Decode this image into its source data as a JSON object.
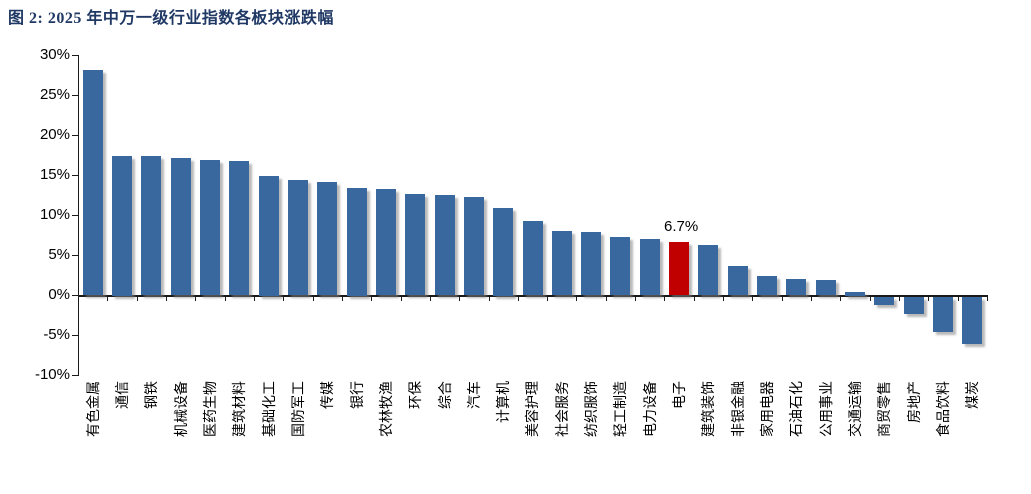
{
  "figure": {
    "title": "图 2: 2025 年中万一级行业指数各板块涨跌幅"
  },
  "colors": {
    "title": "#1F3864",
    "bar": "#38689E",
    "highlight": "#C00000",
    "axis": "#1a1a1a",
    "text": "#000000"
  },
  "chart_data": {
    "type": "bar",
    "title": "2025 年中万一级行业指数各板块涨跌幅",
    "categories": [
      "有色金属",
      "通信",
      "钢铁",
      "机械设备",
      "医药生物",
      "建筑材料",
      "基础化工",
      "国防军工",
      "传媒",
      "银行",
      "农林牧渔",
      "环保",
      "综合",
      "汽车",
      "计算机",
      "美容护理",
      "社会服务",
      "纺织服饰",
      "轻工制造",
      "电力设备",
      "电子",
      "建筑装饰",
      "非银金融",
      "家用电器",
      "石油石化",
      "公用事业",
      "交通运输",
      "商贸零售",
      "房地产",
      "食品饮料",
      "煤炭"
    ],
    "values": [
      28.2,
      17.5,
      17.4,
      17.2,
      16.9,
      16.8,
      15.0,
      14.4,
      14.2,
      13.5,
      13.3,
      12.7,
      12.6,
      12.3,
      11.0,
      9.3,
      8.1,
      7.9,
      7.3,
      7.1,
      6.7,
      6.3,
      3.7,
      2.4,
      2.1,
      1.9,
      0.5,
      -1.0,
      -2.1,
      -4.4,
      -5.9
    ],
    "highlight": {
      "category": "电子",
      "index": 20,
      "label": "6.7%",
      "color": "#C00000"
    },
    "bar_color": "#38689E",
    "xlabel": "",
    "ylabel": "",
    "ylim": [
      -10,
      30
    ],
    "ytick_step": 5,
    "ytick_labels": [
      "30%",
      "25%",
      "20%",
      "15%",
      "10%",
      "5%",
      "0%",
      "-5%",
      "-10%"
    ],
    "grid": false,
    "legend": "none"
  }
}
